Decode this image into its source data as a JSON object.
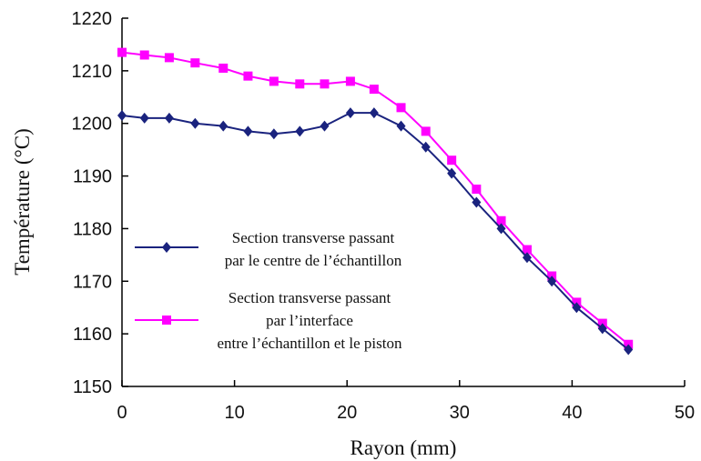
{
  "chart_data": {
    "type": "line",
    "xlabel": "Rayon (mm)",
    "ylabel": "Température (°C)",
    "xlim": [
      0,
      50
    ],
    "ylim": [
      1150,
      1220
    ],
    "x_ticks": [
      "0",
      "10",
      "20",
      "30",
      "40",
      "50"
    ],
    "y_ticks": [
      "1150",
      "1160",
      "1170",
      "1180",
      "1190",
      "1200",
      "1210",
      "1220"
    ],
    "grid": false,
    "legend_position": "center-left",
    "series": [
      {
        "name": "Section transverse passant par le centre de l’échantillon",
        "legend_lines": [
          "Section transverse passant",
          "par le centre de l’échantillon"
        ],
        "color": "#1a237e",
        "marker": "diamond",
        "x": [
          0,
          2.0,
          4.2,
          6.5,
          9.0,
          11.2,
          13.5,
          15.8,
          18.0,
          20.3,
          22.4,
          24.8,
          27.0,
          29.3,
          31.5,
          33.7,
          36.0,
          38.2,
          40.4,
          42.7,
          45.0
        ],
        "y": [
          1201.5,
          1201,
          1201,
          1200,
          1199.5,
          1198.5,
          1198,
          1198.5,
          1199.5,
          1202,
          1202,
          1199.5,
          1195.5,
          1190.5,
          1185,
          1180,
          1174.5,
          1170,
          1165,
          1161,
          1157
        ]
      },
      {
        "name": "Section transverse passant par l’interface entre l’échantillon et le piston",
        "legend_lines": [
          "Section transverse passant",
          "par l’interface",
          "entre l’échantillon et le piston"
        ],
        "color": "#ff00ff",
        "marker": "square",
        "x": [
          0,
          2.0,
          4.2,
          6.5,
          9.0,
          11.2,
          13.5,
          15.8,
          18.0,
          20.3,
          22.4,
          24.8,
          27.0,
          29.3,
          31.5,
          33.7,
          36.0,
          38.2,
          40.4,
          42.7,
          45.0
        ],
        "y": [
          1213.5,
          1213,
          1212.5,
          1211.5,
          1210.5,
          1209,
          1208,
          1207.5,
          1207.5,
          1208,
          1206.5,
          1203,
          1198.5,
          1193,
          1187.5,
          1181.5,
          1176,
          1171,
          1166,
          1162,
          1158
        ]
      }
    ]
  }
}
